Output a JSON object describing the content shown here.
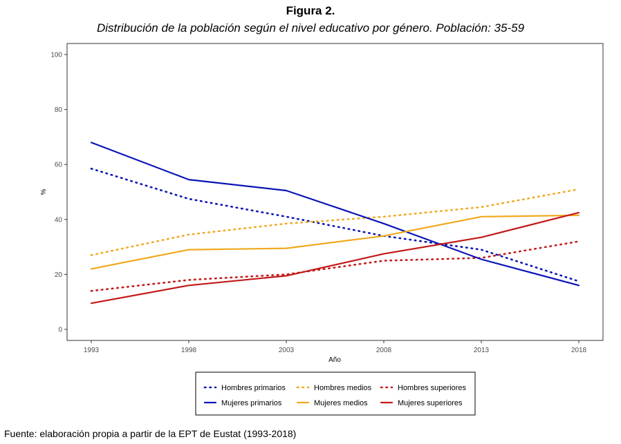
{
  "figure": {
    "title": "Figura 2.",
    "subtitle": "Distribución de la población según el nivel educativo por género. Población: 35-59",
    "source": "Fuente: elaboración propia a partir de la EPT de Eustat (1993-2018)"
  },
  "chart_data": {
    "type": "line",
    "title": "",
    "xlabel": "Año",
    "ylabel": "%",
    "x": [
      1993,
      1998,
      2003,
      2008,
      2013,
      2018
    ],
    "xlim": [
      1993,
      2018
    ],
    "ylim": [
      0,
      100
    ],
    "yticks": [
      0,
      20,
      40,
      60,
      80,
      100
    ],
    "grid": false,
    "legend_position": "bottom",
    "series": [
      {
        "name": "Hombres primarios",
        "color": "#0a14b5",
        "style": "dotted",
        "values": [
          58.5,
          47.5,
          41,
          34,
          29,
          17.5
        ]
      },
      {
        "name": "Hombres medios",
        "color": "#f0a91c",
        "style": "dotted",
        "values": [
          27,
          34.5,
          38.5,
          41,
          44.5,
          51
        ]
      },
      {
        "name": "Hombres superiores",
        "color": "#c21818",
        "style": "dotted",
        "values": [
          14,
          18,
          20,
          25,
          26,
          32
        ]
      },
      {
        "name": "Mujeres primarios",
        "color": "#0a14b5",
        "style": "solid",
        "values": [
          68,
          54.5,
          50.5,
          38.5,
          25.5,
          16
        ]
      },
      {
        "name": "Mujeres medios",
        "color": "#f0a91c",
        "style": "solid",
        "values": [
          22,
          29,
          29.5,
          34,
          41,
          41.5
        ]
      },
      {
        "name": "Mujeres superiores",
        "color": "#c21818",
        "style": "solid",
        "values": [
          9.5,
          16,
          19.5,
          27.5,
          33.5,
          42.5
        ]
      }
    ]
  }
}
